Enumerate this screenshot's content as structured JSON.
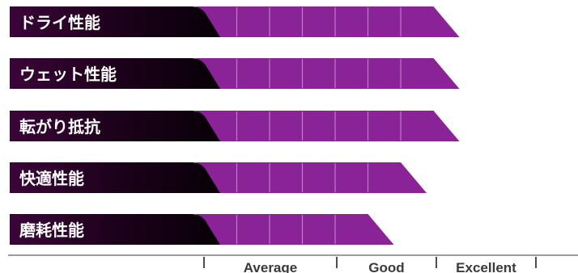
{
  "chart_data": {
    "type": "bar",
    "orientation": "horizontal",
    "categories": [
      "ドライ性能",
      "ウェット性能",
      "転がり抵抗",
      "快適性能",
      "磨耗性能"
    ],
    "values": [
      7,
      7,
      7,
      6,
      5
    ],
    "scale_max": 8,
    "scale_labels": [
      "Average",
      "Good",
      "Excellent"
    ],
    "colors": {
      "bar": "#8a2496",
      "bar_divider": "#c07ccc",
      "label_dark": "#080008",
      "label_tab": "#3a0538",
      "scale_text": "#3a3a3a"
    }
  }
}
